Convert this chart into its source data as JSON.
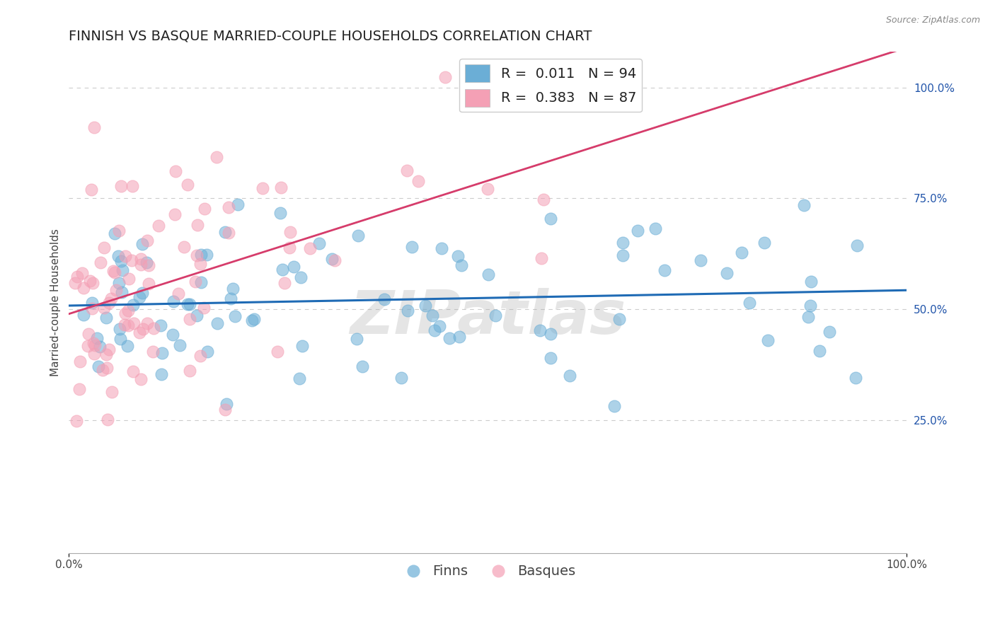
{
  "title": "FINNISH VS BASQUE MARRIED-COUPLE HOUSEHOLDS CORRELATION CHART",
  "source": "Source: ZipAtlas.com",
  "ylabel": "Married-couple Households",
  "xlim": [
    0.0,
    1.0
  ],
  "ylim": [
    -0.05,
    1.08
  ],
  "grid_color": "#cccccc",
  "background_color": "#ffffff",
  "watermark": "ZIPatlas",
  "finns_color": "#6baed6",
  "basques_color": "#f4a0b5",
  "finns_trend_color": "#1f6bb5",
  "basques_trend_color": "#d63c6b",
  "finns_R": 0.011,
  "finns_N": 94,
  "basques_R": 0.383,
  "basques_N": 87,
  "legend_label_finns": "Finns",
  "legend_label_basques": "Basques",
  "title_fontsize": 14,
  "axis_label_fontsize": 11,
  "tick_fontsize": 11,
  "legend_fontsize": 14
}
